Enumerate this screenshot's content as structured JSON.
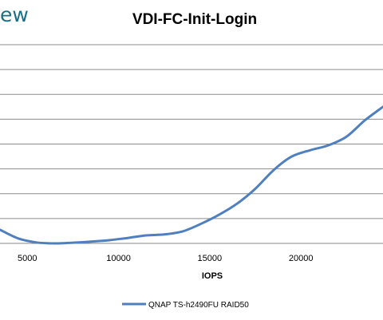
{
  "header": {
    "logo_fragment": "ew"
  },
  "chart_data": {
    "type": "line",
    "title": "VDI-FC-Init-Login",
    "xlabel": "IOPS",
    "ylabel": "",
    "xlim": [
      3500,
      24500
    ],
    "ylim": [
      0,
      8
    ],
    "xticks": [
      5000,
      10000,
      15000,
      20000
    ],
    "grid": true,
    "legend_position": "bottom",
    "series": [
      {
        "name": "QNAP TS-h2490FU RAID50",
        "color": "#4f7fbf",
        "x": [
          3500,
          4500,
          5500,
          6500,
          7500,
          8500,
          9500,
          10500,
          11500,
          12500,
          13500,
          14500,
          15500,
          16500,
          17500,
          18500,
          19500,
          20500,
          21500,
          22500,
          23500,
          24500
        ],
        "y": [
          0.55,
          0.2,
          0.04,
          0.0,
          0.03,
          0.07,
          0.13,
          0.22,
          0.32,
          0.36,
          0.48,
          0.78,
          1.15,
          1.6,
          2.2,
          2.95,
          3.5,
          3.75,
          3.95,
          4.3,
          4.95,
          5.5
        ]
      }
    ]
  }
}
